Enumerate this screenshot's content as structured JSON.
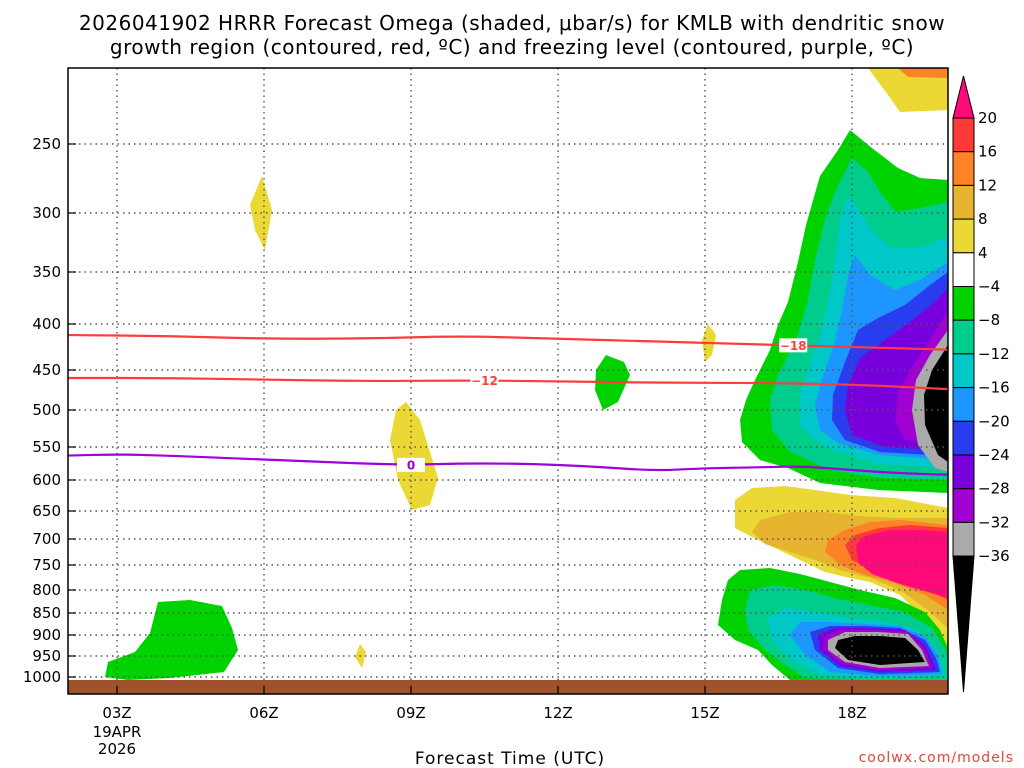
{
  "chart_data": {
    "type": "heatmap",
    "title_lines": [
      "2026041902 HRRR Forecast Omega (shaded, μbar/s) for KMLB with dendritic snow",
      "growth region (contoured, red, ºC) and freezing level (contoured, purple, ºC)"
    ],
    "xlabel": "Forecast Time (UTC)",
    "ylabel": "",
    "x_ticks": [
      "03Z",
      "06Z",
      "09Z",
      "12Z",
      "15Z",
      "18Z"
    ],
    "x_tick_hours": [
      3,
      6,
      9,
      12,
      15,
      18
    ],
    "date_label": [
      "19APR",
      "2026"
    ],
    "xlim": [
      2,
      20
    ],
    "y_ticks": [
      250,
      300,
      350,
      400,
      450,
      500,
      550,
      600,
      650,
      700,
      750,
      800,
      850,
      900,
      950,
      1000
    ],
    "ylim": [
      200,
      1000
    ],
    "colorbar": {
      "labels": [
        "20",
        "16",
        "12",
        "8",
        "4",
        "−4",
        "−8",
        "−12",
        "−16",
        "−20",
        "−24",
        "−28",
        "−32",
        "−36"
      ],
      "levels": [
        20,
        16,
        12,
        8,
        4,
        -4,
        -8,
        -12,
        -16,
        -20,
        -24,
        -28,
        -32,
        -36
      ],
      "colors": [
        "#ff0a78",
        "#ff3838",
        "#ff8226",
        "#e6b42e",
        "#ebd834",
        "#ffffff",
        "#00d200",
        "#00cc8c",
        "#00c8c8",
        "#1e96ff",
        "#2a3cf0",
        "#7800dc",
        "#a000d2",
        "#aaaaaa",
        "#000000"
      ]
    },
    "contours": [
      {
        "name": "dgz-minus-18",
        "label": "−18",
        "color": "#ff3c3c",
        "hours": [
          2,
          4,
          6,
          8,
          10,
          12,
          14,
          16,
          18,
          20
        ],
        "pressure": [
          412,
          413,
          416,
          416,
          413,
          416,
          419,
          422,
          425,
          428
        ]
      },
      {
        "name": "dgz-minus-12",
        "label": "−12",
        "color": "#ff3c3c",
        "hours": [
          2,
          4,
          6,
          8,
          10,
          12,
          14,
          16,
          18,
          20
        ],
        "pressure": [
          460,
          460,
          462,
          464,
          463,
          464,
          466,
          466,
          468,
          474
        ]
      },
      {
        "name": "freezing-level",
        "label": "0",
        "color": "#a000dc",
        "hours": [
          2,
          3,
          4,
          5,
          6,
          7,
          8,
          9,
          10,
          11,
          12,
          13,
          14,
          15,
          16,
          17,
          18,
          19,
          20
        ],
        "pressure": [
          563,
          561,
          563,
          566,
          569,
          572,
          575,
          577,
          575,
          575,
          577,
          581,
          586,
          582,
          581,
          579,
          585,
          590,
          592
        ]
      }
    ],
    "shaded_features": [
      {
        "name": "ground-strip",
        "kind": "surface",
        "color": "#a0522d"
      },
      {
        "name": "strong-rising-lower",
        "omega_min": -36,
        "color": "#000000"
      },
      {
        "name": "strong-rising-upper",
        "omega_min": -36,
        "color": "#000000"
      },
      {
        "name": "sinking-700hPa",
        "omega_max": 20,
        "color": "#ff0a78"
      }
    ]
  },
  "credit": "coolwx.com/models"
}
